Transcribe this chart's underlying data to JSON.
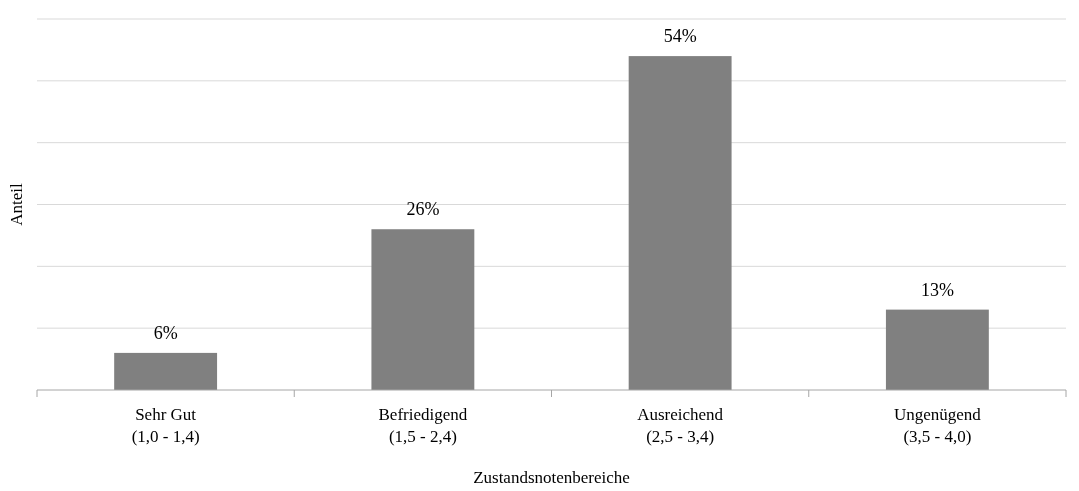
{
  "chart_data": {
    "type": "bar",
    "xlabel": "Zustandsnotenbereiche",
    "ylabel": "Anteil",
    "categories": [
      "Sehr Gut\n(1,0 - 1,4)",
      "Befriedigend\n(1,5 - 2,4)",
      "Ausreichend\n(2,5 - 3,4)",
      "Ungenügend\n(3,5 - 4,0)"
    ],
    "values": [
      6,
      26,
      54,
      13
    ],
    "value_labels": [
      "6%",
      "26%",
      "54%",
      "13%"
    ],
    "color": "#808080",
    "ylim": [
      0,
      60
    ],
    "yticks": [
      {
        "value": 0,
        "label": null
      },
      {
        "value": 10,
        "label": null
      },
      {
        "value": 20,
        "label": null
      },
      {
        "value": 30,
        "label": null
      },
      {
        "value": 40,
        "label": null
      },
      {
        "value": 50,
        "label": null
      },
      {
        "value": 60,
        "label": null
      }
    ],
    "grid": "y",
    "tick_labels": "x"
  }
}
